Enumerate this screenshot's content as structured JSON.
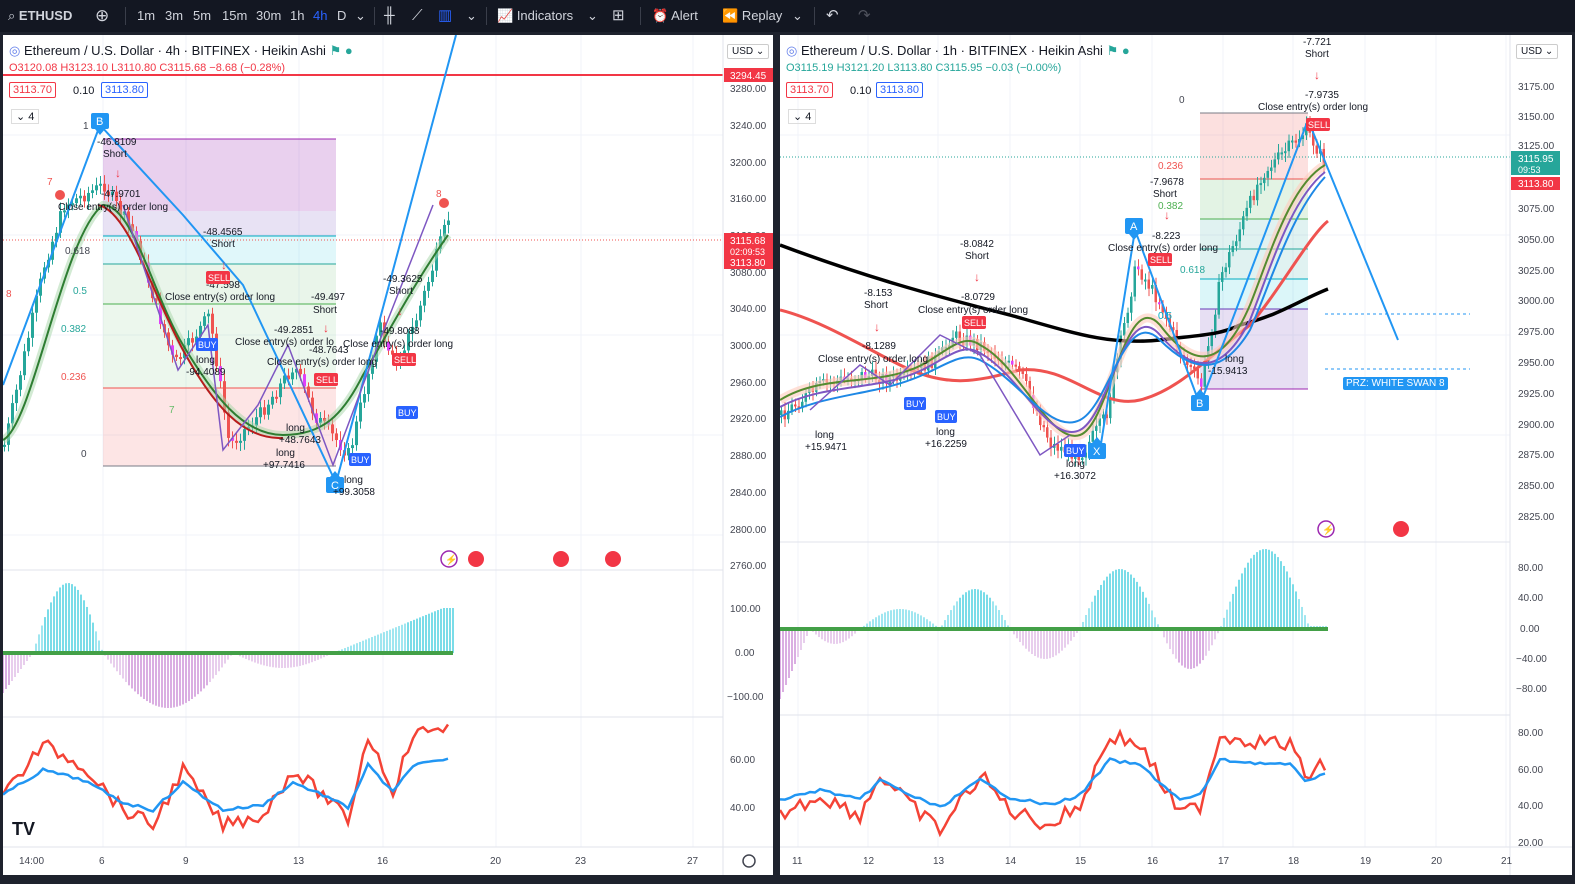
{
  "toolbar": {
    "symbol": "ETHUSD",
    "intervals": [
      "1m",
      "3m",
      "5m",
      "15m",
      "30m",
      "1h",
      "4h",
      "D"
    ],
    "active_interval": "4h",
    "indicators_label": "Indicators",
    "alert_label": "Alert",
    "replay_label": "Replay"
  },
  "left": {
    "title": "Ethereum / U.S. Dollar · 4h · BITFINEX · Heikin Ashi",
    "ohlc": {
      "o": "O3120.08",
      "h": "H3123.10",
      "l": "L3110.80",
      "c": "C3115.68",
      "chg": "−8.68 (−0.28%)"
    },
    "bid": "3113.70",
    "spread": "0.10",
    "ask": "3113.80",
    "layers": "4",
    "currency": "USD",
    "price_axis": [
      "3294.45",
      "3280.00",
      "3240.00",
      "3200.00",
      "3160.00",
      "3120.00",
      "3080.00",
      "3040.00",
      "3000.00",
      "2960.00",
      "2920.00",
      "2880.00",
      "2840.00",
      "2800.00",
      "2760.00"
    ],
    "last_price": "3115.68",
    "countdown": "02:09:53",
    "bid_axis": "3113.80",
    "macd_axis": [
      "100.00",
      "0.00",
      "−100.00"
    ],
    "rsi_axis": [
      "60.00",
      "40.00"
    ],
    "time_axis": [
      "14:00",
      "6",
      "9",
      "13",
      "16",
      "20",
      "23",
      "27"
    ],
    "fib_levels": [
      "1",
      "0.618",
      "0.5",
      "0.382",
      "0.236",
      "0"
    ],
    "pattern_points": [
      "B",
      "C"
    ],
    "annotations": [
      "-46.8109",
      "Short",
      "-47.9701",
      "Close entry(s) order long",
      "-48.4565",
      "Short",
      "-47.598",
      "Close entry(s) order long",
      "-49.497",
      "Short",
      "-49.2851",
      "Close entry(s) order lo",
      "-48.7643",
      "Close entry(s) order long",
      "-49.3625",
      "Short",
      "-49.8088",
      "Close entry(s) order long",
      "long",
      "-94.4089",
      "long",
      "+48.7643",
      "long",
      "+97.7416",
      "long",
      "+99.3058",
      "BUY",
      "SELL",
      "7",
      "8",
      "7",
      "8"
    ]
  },
  "right": {
    "title": "Ethereum / U.S. Dollar · 1h · BITFINEX · Heikin Ashi",
    "ohlc": {
      "o": "O3115.19",
      "h": "H3121.20",
      "l": "L3113.80",
      "c": "C3115.95",
      "chg": "−0.03 (−0.00%)"
    },
    "bid": "3113.70",
    "spread": "0.10",
    "ask": "3113.80",
    "layers": "4",
    "currency": "USD",
    "price_axis": [
      "3175.00",
      "3150.00",
      "3125.00",
      "3100.00",
      "3075.00",
      "3050.00",
      "3025.00",
      "3000.00",
      "2975.00",
      "2950.00",
      "2925.00",
      "2900.00",
      "2875.00",
      "2850.00",
      "2825.00"
    ],
    "last_price": "3115.95",
    "countdown": "09:53",
    "bid_axis": "3113.80",
    "macd_axis": [
      "80.00",
      "40.00",
      "0.00",
      "−40.00",
      "−80.00"
    ],
    "rsi_axis": [
      "80.00",
      "60.00",
      "40.00",
      "20.00"
    ],
    "time_axis": [
      "11",
      "12",
      "13",
      "14",
      "15",
      "16",
      "17",
      "18",
      "19",
      "20",
      "21"
    ],
    "fib_levels": [
      "0",
      "0.236",
      "0.382",
      "0.5",
      "0.618"
    ],
    "pattern_points": [
      "A",
      "B",
      "X"
    ],
    "prz_label": "PRZ: WHITE SWAN 8",
    "annotations": [
      "-7.721",
      "Short",
      "-7.9735",
      "Close entry(s) order long",
      "-7.9678",
      "Short",
      "-8.223",
      "Close entry(s) order long",
      "-8.0842",
      "Short",
      "-8.0729",
      "Close entry(s) order long",
      "-8.153",
      "Short",
      "-8.1289",
      "Close entry(s) order long",
      "long",
      "+15.9471",
      "long",
      "+16.2259",
      "long",
      "+16.3072",
      "long",
      "-15.9413",
      "BUY",
      "SELL"
    ]
  },
  "colors": {
    "bg": "#ffffff",
    "frame": "#1e222d",
    "up": "#26a69a",
    "down": "#ef5350",
    "blue": "#2196f3",
    "red_line": "#f23645",
    "black_ma": "#000000"
  }
}
